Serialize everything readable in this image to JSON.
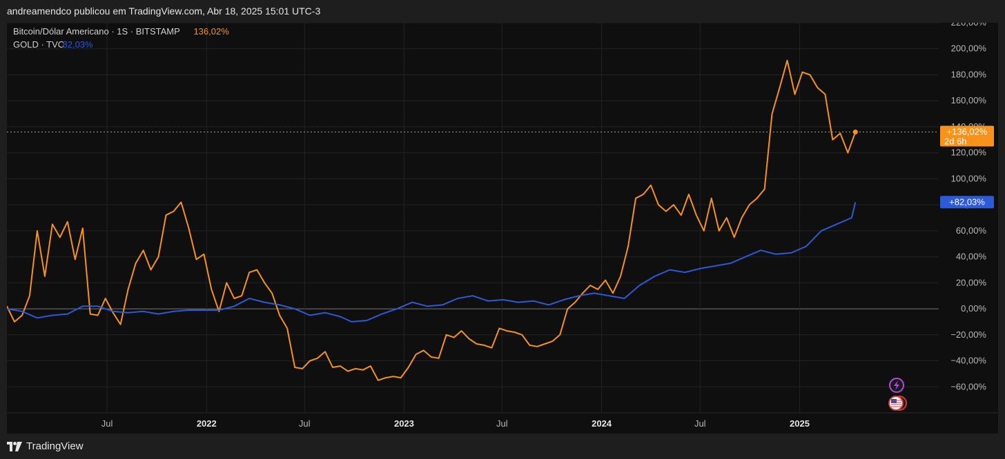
{
  "header": {
    "publisher_text": "andreamendco publicou em TradingView.com, Abr 18, 2025 15:01 UTC-3"
  },
  "footer": {
    "brand": "TradingView"
  },
  "colors": {
    "btc": "#f7931a",
    "gold": "#2d5ad6",
    "background": "#0f0f0f",
    "grid": "#232323"
  },
  "chart_data": {
    "type": "line",
    "legend": [
      {
        "name": "Bitcoin/Dólar Americano · 1S · BITSTAMP",
        "value": "136,02%",
        "color": "#f7931a"
      },
      {
        "name": "GOLD · TVC",
        "value": "82,03%",
        "color": "#2d5ad6"
      }
    ],
    "x_ticks": [
      {
        "label": "Jul",
        "date": "2021-07",
        "bold": false
      },
      {
        "label": "2022",
        "date": "2022-01",
        "bold": true
      },
      {
        "label": "Jul",
        "date": "2022-07",
        "bold": false
      },
      {
        "label": "2023",
        "date": "2023-01",
        "bold": true
      },
      {
        "label": "Jul",
        "date": "2023-07",
        "bold": false
      },
      {
        "label": "2024",
        "date": "2024-01",
        "bold": true
      },
      {
        "label": "Jul",
        "date": "2024-07",
        "bold": false
      },
      {
        "label": "2025",
        "date": "2025-01",
        "bold": true
      }
    ],
    "y_ticks": [
      {
        "v": 220,
        "label": "220,00%"
      },
      {
        "v": 200,
        "label": "200,00%"
      },
      {
        "v": 180,
        "label": "180,00%"
      },
      {
        "v": 160,
        "label": "160,00%"
      },
      {
        "v": 140,
        "label": "140,00%"
      },
      {
        "v": 120,
        "label": "120,00%"
      },
      {
        "v": 100,
        "label": "100,00%"
      },
      {
        "v": 80,
        "label": "80,00%"
      },
      {
        "v": 60,
        "label": "60,00%"
      },
      {
        "v": 40,
        "label": "40,00%"
      },
      {
        "v": 20,
        "label": "20,00%"
      },
      {
        "v": 0,
        "label": "0,00%"
      },
      {
        "v": -20,
        "label": "−20,00%"
      },
      {
        "v": -40,
        "label": "−40,00%"
      },
      {
        "v": -60,
        "label": "−60,00%"
      }
    ],
    "ylim": [
      -80,
      220
    ],
    "xlim": [
      "2020-12-28",
      "2025-09-15"
    ],
    "series": [
      {
        "name": "Bitcoin/Dólar Americano · 1S · BITSTAMP",
        "color": "#f7931a",
        "points": [
          [
            "2020-12-28",
            2
          ],
          [
            "2021-01-11",
            -10
          ],
          [
            "2021-01-25",
            -5
          ],
          [
            "2021-02-08",
            10
          ],
          [
            "2021-02-22",
            60
          ],
          [
            "2021-03-08",
            25
          ],
          [
            "2021-03-22",
            65
          ],
          [
            "2021-04-05",
            55
          ],
          [
            "2021-04-19",
            67
          ],
          [
            "2021-05-03",
            38
          ],
          [
            "2021-05-17",
            62
          ],
          [
            "2021-05-31",
            -4
          ],
          [
            "2021-06-14",
            -5
          ],
          [
            "2021-06-28",
            8
          ],
          [
            "2021-07-12",
            -3
          ],
          [
            "2021-07-26",
            -12
          ],
          [
            "2021-08-09",
            15
          ],
          [
            "2021-08-23",
            35
          ],
          [
            "2021-09-06",
            45
          ],
          [
            "2021-09-20",
            30
          ],
          [
            "2021-10-04",
            40
          ],
          [
            "2021-10-18",
            72
          ],
          [
            "2021-11-01",
            75
          ],
          [
            "2021-11-15",
            82
          ],
          [
            "2021-11-29",
            62
          ],
          [
            "2021-12-13",
            38
          ],
          [
            "2021-12-27",
            42
          ],
          [
            "2022-01-10",
            15
          ],
          [
            "2022-01-24",
            -2
          ],
          [
            "2022-02-07",
            20
          ],
          [
            "2022-02-21",
            8
          ],
          [
            "2022-03-07",
            10
          ],
          [
            "2022-03-21",
            28
          ],
          [
            "2022-04-04",
            30
          ],
          [
            "2022-04-18",
            20
          ],
          [
            "2022-05-02",
            12
          ],
          [
            "2022-05-16",
            -5
          ],
          [
            "2022-05-30",
            -15
          ],
          [
            "2022-06-13",
            -45
          ],
          [
            "2022-06-27",
            -46
          ],
          [
            "2022-07-11",
            -40
          ],
          [
            "2022-07-25",
            -38
          ],
          [
            "2022-08-08",
            -33
          ],
          [
            "2022-08-22",
            -45
          ],
          [
            "2022-09-05",
            -44
          ],
          [
            "2022-09-19",
            -48
          ],
          [
            "2022-10-03",
            -46
          ],
          [
            "2022-10-17",
            -47
          ],
          [
            "2022-10-31",
            -44
          ],
          [
            "2022-11-14",
            -55
          ],
          [
            "2022-11-28",
            -53
          ],
          [
            "2022-12-12",
            -52
          ],
          [
            "2022-12-26",
            -53
          ],
          [
            "2023-01-09",
            -45
          ],
          [
            "2023-01-23",
            -35
          ],
          [
            "2023-02-06",
            -32
          ],
          [
            "2023-02-20",
            -37
          ],
          [
            "2023-03-06",
            -38
          ],
          [
            "2023-03-20",
            -20
          ],
          [
            "2023-04-03",
            -22
          ],
          [
            "2023-04-17",
            -17
          ],
          [
            "2023-05-01",
            -23
          ],
          [
            "2023-05-15",
            -27
          ],
          [
            "2023-05-29",
            -28
          ],
          [
            "2023-06-12",
            -30
          ],
          [
            "2023-06-26",
            -15
          ],
          [
            "2023-07-10",
            -17
          ],
          [
            "2023-07-24",
            -18
          ],
          [
            "2023-08-07",
            -20
          ],
          [
            "2023-08-21",
            -28
          ],
          [
            "2023-09-04",
            -29
          ],
          [
            "2023-09-18",
            -27
          ],
          [
            "2023-10-02",
            -25
          ],
          [
            "2023-10-16",
            -20
          ],
          [
            "2023-10-30",
            0
          ],
          [
            "2023-11-13",
            5
          ],
          [
            "2023-11-27",
            12
          ],
          [
            "2023-12-11",
            18
          ],
          [
            "2023-12-25",
            15
          ],
          [
            "2024-01-08",
            22
          ],
          [
            "2024-01-22",
            12
          ],
          [
            "2024-02-05",
            25
          ],
          [
            "2024-02-19",
            48
          ],
          [
            "2024-03-04",
            85
          ],
          [
            "2024-03-18",
            88
          ],
          [
            "2024-04-01",
            95
          ],
          [
            "2024-04-15",
            80
          ],
          [
            "2024-04-29",
            75
          ],
          [
            "2024-05-13",
            80
          ],
          [
            "2024-05-27",
            72
          ],
          [
            "2024-06-10",
            88
          ],
          [
            "2024-06-24",
            72
          ],
          [
            "2024-07-08",
            60
          ],
          [
            "2024-07-22",
            85
          ],
          [
            "2024-08-05",
            60
          ],
          [
            "2024-08-19",
            70
          ],
          [
            "2024-09-02",
            55
          ],
          [
            "2024-09-16",
            70
          ],
          [
            "2024-09-30",
            80
          ],
          [
            "2024-10-14",
            85
          ],
          [
            "2024-10-28",
            92
          ],
          [
            "2024-11-11",
            150
          ],
          [
            "2024-11-25",
            170
          ],
          [
            "2024-12-09",
            191
          ],
          [
            "2024-12-23",
            165
          ],
          [
            "2025-01-06",
            182
          ],
          [
            "2025-01-20",
            180
          ],
          [
            "2025-02-03",
            170
          ],
          [
            "2025-02-17",
            165
          ],
          [
            "2025-03-03",
            130
          ],
          [
            "2025-03-17",
            135
          ],
          [
            "2025-03-31",
            120
          ],
          [
            "2025-04-14",
            136
          ]
        ]
      },
      {
        "name": "GOLD · TVC",
        "color": "#2d5ad6",
        "points": [
          [
            "2020-12-28",
            0
          ],
          [
            "2021-01-25",
            -2
          ],
          [
            "2021-02-22",
            -7
          ],
          [
            "2021-03-22",
            -5
          ],
          [
            "2021-04-19",
            -4
          ],
          [
            "2021-05-17",
            2
          ],
          [
            "2021-06-14",
            2
          ],
          [
            "2021-07-12",
            -2
          ],
          [
            "2021-08-09",
            -3
          ],
          [
            "2021-09-06",
            -2
          ],
          [
            "2021-10-04",
            -4
          ],
          [
            "2021-11-01",
            -2
          ],
          [
            "2021-11-29",
            -1
          ],
          [
            "2021-12-27",
            -1
          ],
          [
            "2022-01-24",
            -1
          ],
          [
            "2022-02-21",
            2
          ],
          [
            "2022-03-21",
            8
          ],
          [
            "2022-04-18",
            5
          ],
          [
            "2022-05-16",
            3
          ],
          [
            "2022-06-13",
            0
          ],
          [
            "2022-07-11",
            -5
          ],
          [
            "2022-08-08",
            -3
          ],
          [
            "2022-09-05",
            -6
          ],
          [
            "2022-09-26",
            -10
          ],
          [
            "2022-10-24",
            -9
          ],
          [
            "2022-11-21",
            -4
          ],
          [
            "2022-12-19",
            0
          ],
          [
            "2023-01-16",
            5
          ],
          [
            "2023-02-13",
            2
          ],
          [
            "2023-03-13",
            3
          ],
          [
            "2023-04-10",
            8
          ],
          [
            "2023-05-08",
            10
          ],
          [
            "2023-06-05",
            6
          ],
          [
            "2023-07-03",
            7
          ],
          [
            "2023-07-31",
            5
          ],
          [
            "2023-08-28",
            6
          ],
          [
            "2023-09-25",
            3
          ],
          [
            "2023-10-23",
            7
          ],
          [
            "2023-11-20",
            10
          ],
          [
            "2023-12-18",
            12
          ],
          [
            "2024-01-15",
            10
          ],
          [
            "2024-02-12",
            8
          ],
          [
            "2024-03-11",
            18
          ],
          [
            "2024-04-08",
            25
          ],
          [
            "2024-05-06",
            30
          ],
          [
            "2024-06-03",
            28
          ],
          [
            "2024-07-01",
            31
          ],
          [
            "2024-07-29",
            33
          ],
          [
            "2024-08-26",
            35
          ],
          [
            "2024-09-23",
            40
          ],
          [
            "2024-10-21",
            45
          ],
          [
            "2024-11-18",
            42
          ],
          [
            "2024-12-16",
            43
          ],
          [
            "2025-01-13",
            48
          ],
          [
            "2025-02-10",
            60
          ],
          [
            "2025-03-10",
            65
          ],
          [
            "2025-04-07",
            70
          ],
          [
            "2025-04-14",
            82
          ]
        ]
      }
    ],
    "last_badges": [
      {
        "series": 0,
        "text1": "+136,02%",
        "text2": "2d 6h",
        "value": 136.02
      },
      {
        "series": 1,
        "text1": "+82,03%",
        "value": 82.03
      }
    ],
    "watermark_icons": [
      "lightning-event-icon",
      "us-flag-event-icon"
    ]
  }
}
